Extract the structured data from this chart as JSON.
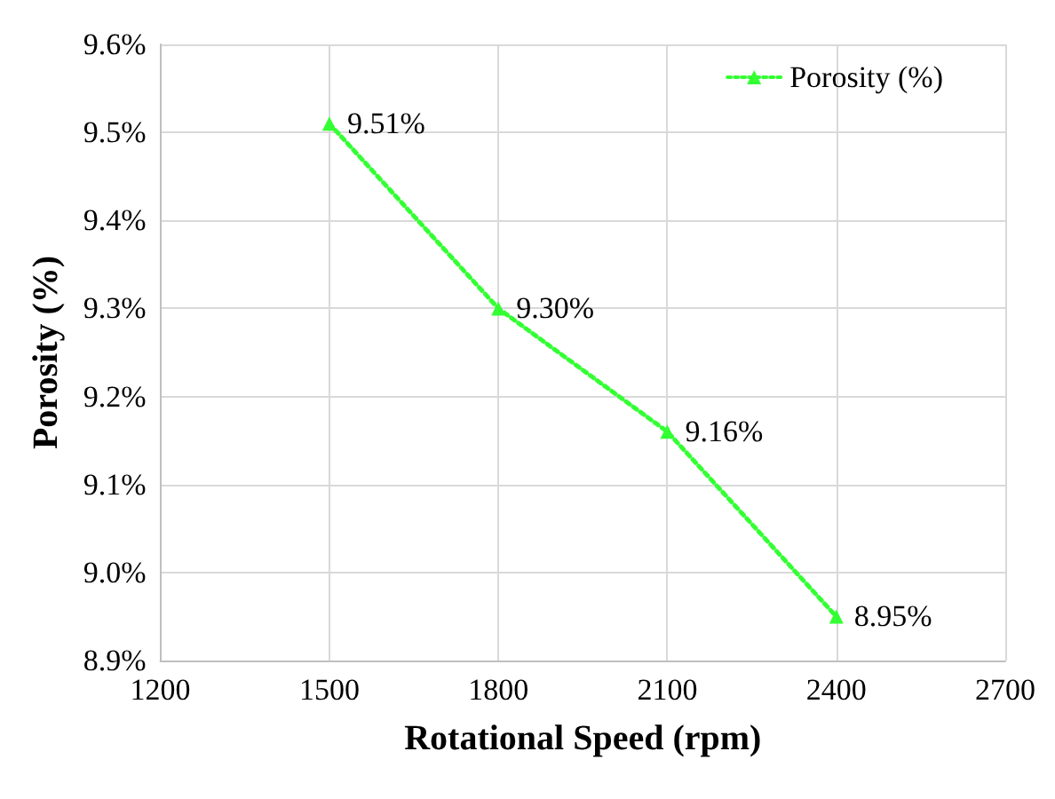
{
  "chart_data": {
    "type": "line",
    "xlabel": "Rotational Speed (rpm)",
    "ylabel": "Porosity (%)",
    "x": [
      1500,
      1800,
      2100,
      2400
    ],
    "series": [
      {
        "name": "Porosity (%)",
        "color": "#33ff33",
        "values": [
          9.51,
          9.3,
          9.16,
          8.95
        ],
        "value_labels": [
          "9.51%",
          "9.30%",
          "9.16%",
          "8.95%"
        ]
      }
    ],
    "xlim": [
      1200,
      2700
    ],
    "xticks": [
      1200,
      1500,
      1800,
      2100,
      2400,
      2700
    ],
    "ylim": [
      8.9,
      9.6
    ],
    "yticks": [
      {
        "value": 8.9,
        "label": "8.9%"
      },
      {
        "value": 9.0,
        "label": "9.0%"
      },
      {
        "value": 9.1,
        "label": "9.1%"
      },
      {
        "value": 9.2,
        "label": "9.2%"
      },
      {
        "value": 9.3,
        "label": "9.3%"
      },
      {
        "value": 9.4,
        "label": "9.4%"
      },
      {
        "value": 9.5,
        "label": "9.5%"
      },
      {
        "value": 9.6,
        "label": "9.6%"
      }
    ],
    "grid": true,
    "legend": "top right",
    "marker": "triangle",
    "line_style": "dotted"
  }
}
